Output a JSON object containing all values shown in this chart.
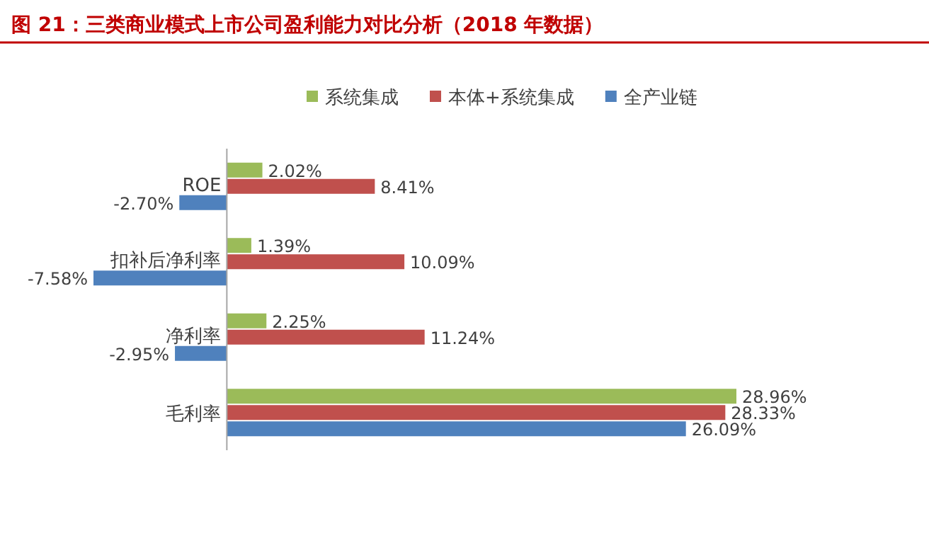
{
  "chart_data": {
    "type": "bar",
    "orientation": "horizontal",
    "title": "图 21：三类商业模式上市公司盈利能力对比分析（2018 年数据）",
    "categories": [
      "ROE",
      "扣补后净利率",
      "净利率",
      "毛利率"
    ],
    "series": [
      {
        "name": "系统集成",
        "color": "#9bbb59",
        "values": [
          2.02,
          1.39,
          2.25,
          28.96
        ],
        "value_labels": [
          "2.02%",
          "1.39%",
          "2.25%",
          "28.96%"
        ]
      },
      {
        "name": "本体+系统集成",
        "color": "#c0504d",
        "values": [
          8.41,
          10.09,
          11.24,
          28.33
        ],
        "value_labels": [
          "8.41%",
          "10.09%",
          "11.24%",
          "28.33%"
        ]
      },
      {
        "name": "全产业链",
        "color": "#4f81bd",
        "values": [
          -2.7,
          -7.58,
          -2.95,
          26.09
        ],
        "value_labels": [
          "-2.70%",
          "-7.58%",
          "-2.95%",
          "26.09%"
        ]
      }
    ],
    "legend": "top"
  }
}
